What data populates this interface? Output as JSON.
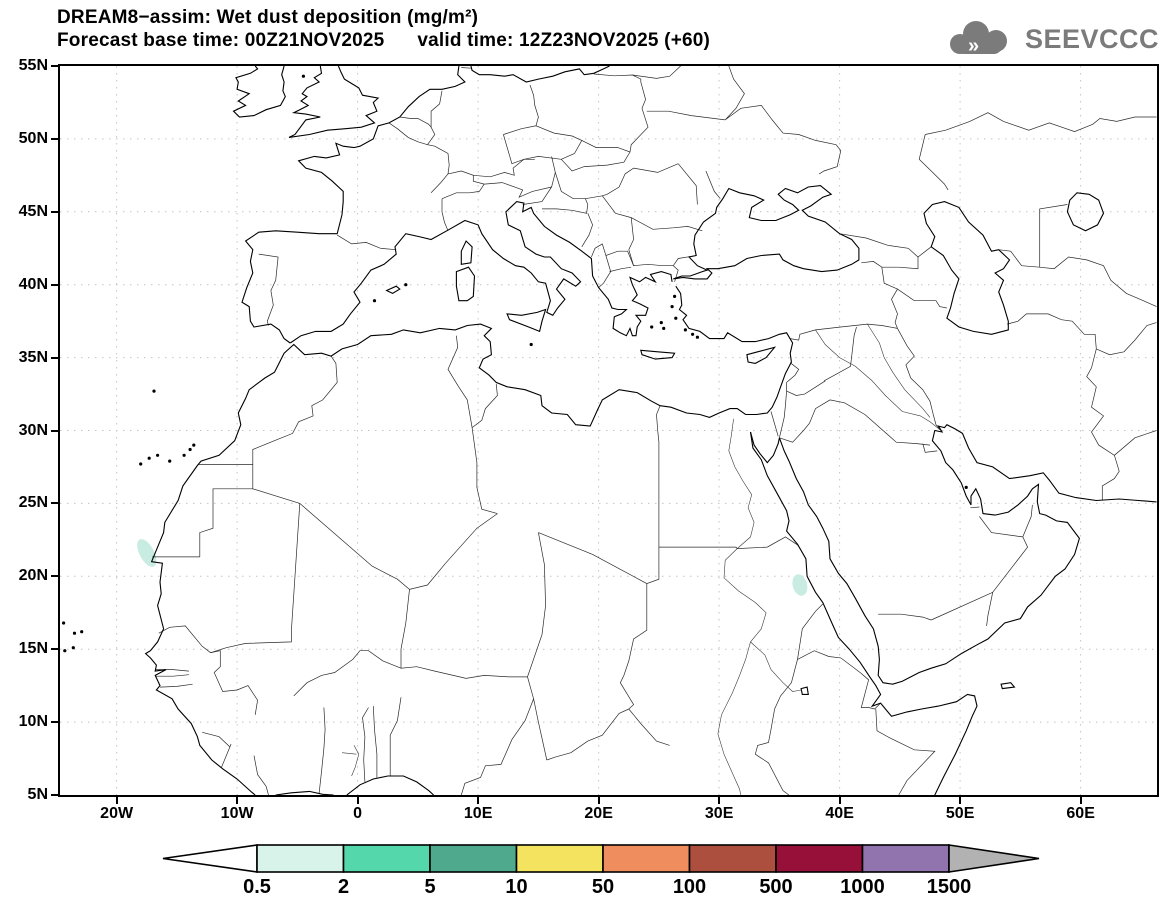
{
  "header": {
    "title": "DREAM8−assim: Wet dust deposition (mg/m²)",
    "subtitle": "Forecast base time: 00Z21NOV2025      valid time: 12Z23NOV2025 (+60)",
    "forecast_base_time": "00Z21NOV2025",
    "valid_time": "12Z23NOV2025",
    "lead_time": "+60"
  },
  "logo": {
    "text": "SEEVCCC",
    "color": "#7b7b7b"
  },
  "axes": {
    "lat_labels": [
      "55N",
      "50N",
      "45N",
      "40N",
      "35N",
      "30N",
      "25N",
      "20N",
      "15N",
      "10N",
      "5N"
    ],
    "lon_labels": [
      "20W",
      "10W",
      "0",
      "10E",
      "20E",
      "30E",
      "40E",
      "50E",
      "60E"
    ]
  },
  "colorbar": {
    "labels": [
      "0.5",
      "2",
      "5",
      "10",
      "50",
      "100",
      "500",
      "1000",
      "1500"
    ],
    "colors": [
      "#d7f3ea",
      "#55d7ac",
      "#4fa98c",
      "#f3e35f",
      "#f08d5e",
      "#ad4f3e",
      "#97103a",
      "#9173ae"
    ],
    "left_arrow_color": "#ffffff",
    "right_arrow_color": "#b2b2b2",
    "outline_color": "#000000"
  },
  "chart_data": {
    "type": "map-contour",
    "title": "DREAM8-assim: Wet dust deposition (mg/m²)",
    "units": "mg/m²",
    "model": "DREAM8-assim",
    "forecast_base_time": "00Z21NOV2025",
    "valid_time": "12Z23NOV2025 (+60)",
    "lon_range": [
      -24.7,
      66.3
    ],
    "lat_range": [
      5,
      55
    ],
    "lon_ticks_deg": [
      -20,
      -10,
      0,
      10,
      20,
      30,
      40,
      50,
      60
    ],
    "lat_ticks_deg": [
      55,
      50,
      45,
      40,
      35,
      30,
      25,
      20,
      15,
      10,
      5
    ],
    "levels": [
      0.5,
      2,
      5,
      10,
      50,
      100,
      500,
      1000,
      1500
    ],
    "grid": true,
    "deposition_areas": [
      {
        "lon": -17.5,
        "lat": 21.6,
        "extent_lon_deg": 1.2,
        "extent_lat_deg": 2.1,
        "rotation_deg": -28,
        "value_range": [
          0.5,
          2
        ],
        "color": "#c8ebe2",
        "location": "Atlantic coast near Mauritania / Western Sahara border"
      },
      {
        "lon": 36.7,
        "lat": 19.4,
        "extent_lon_deg": 1.2,
        "extent_lat_deg": 1.5,
        "rotation_deg": -15,
        "value_range": [
          0.5,
          2
        ],
        "color": "#c8ebe2",
        "location": "NE Sudan near Red Sea coast"
      }
    ]
  }
}
